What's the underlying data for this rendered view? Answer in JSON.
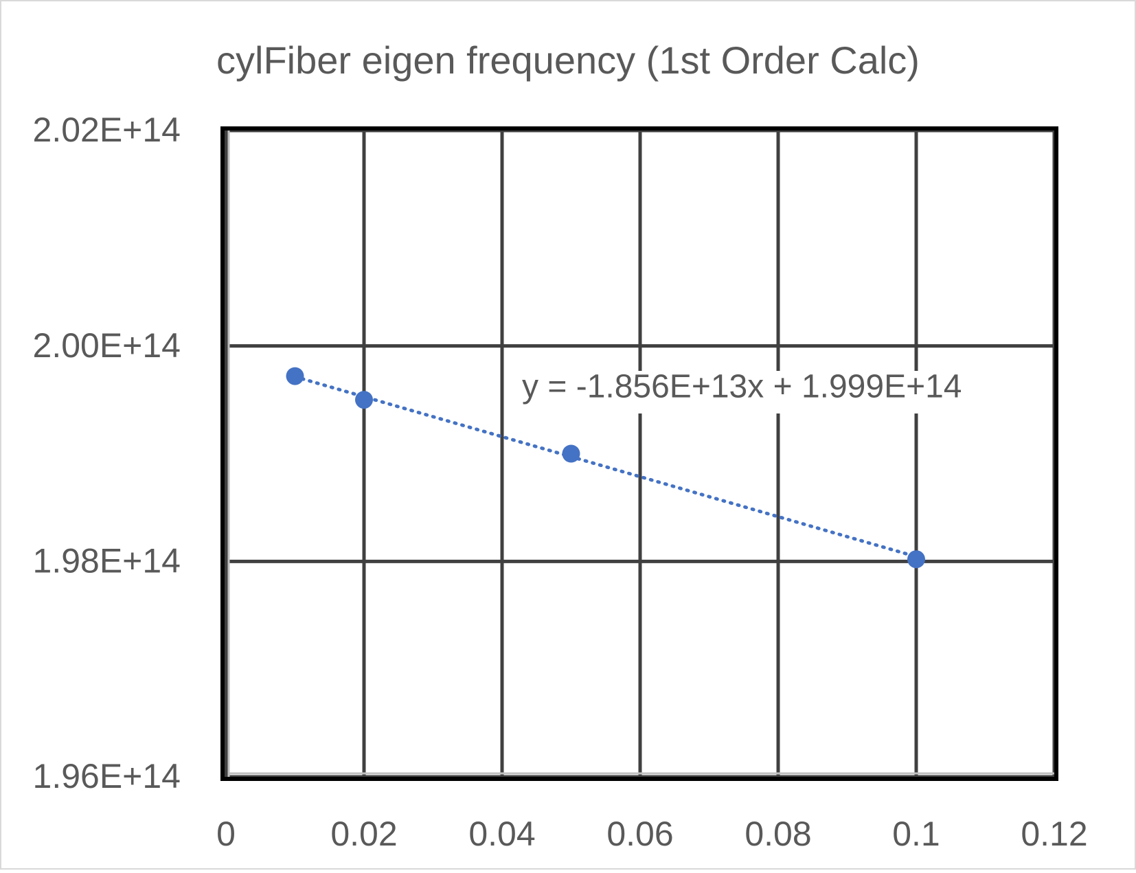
{
  "chart_data": {
    "type": "scatter",
    "title": "cylFiber eigen frequency (1st Order Calc)",
    "series": [
      {
        "color": "#4472c4",
        "x": [
          0.01,
          0.02,
          0.05,
          0.1
        ],
        "values": [
          199720000000000.0,
          199500000000000.0,
          199000000000000.0,
          198020000000000.0
        ]
      }
    ],
    "trendline": {
      "slope": -18560000000000.0,
      "intercept": 199900000000000.0,
      "label": "y = -1.856E+13x + 1.999E+14"
    },
    "xlim": [
      0,
      0.12
    ],
    "xticks": [
      0,
      0.02,
      0.04,
      0.06,
      0.08,
      0.1,
      0.12
    ],
    "ylim": [
      196000000000000.0,
      202000000000000.0
    ],
    "yticks": [
      {
        "value": 196000000000000.0,
        "label": "1.96E+14"
      },
      {
        "value": 198000000000000.0,
        "label": "1.98E+14"
      },
      {
        "value": 200000000000000.0,
        "label": "2.00E+14"
      },
      {
        "value": 202000000000000.0,
        "label": "2.02E+14"
      }
    ],
    "grid": true
  }
}
